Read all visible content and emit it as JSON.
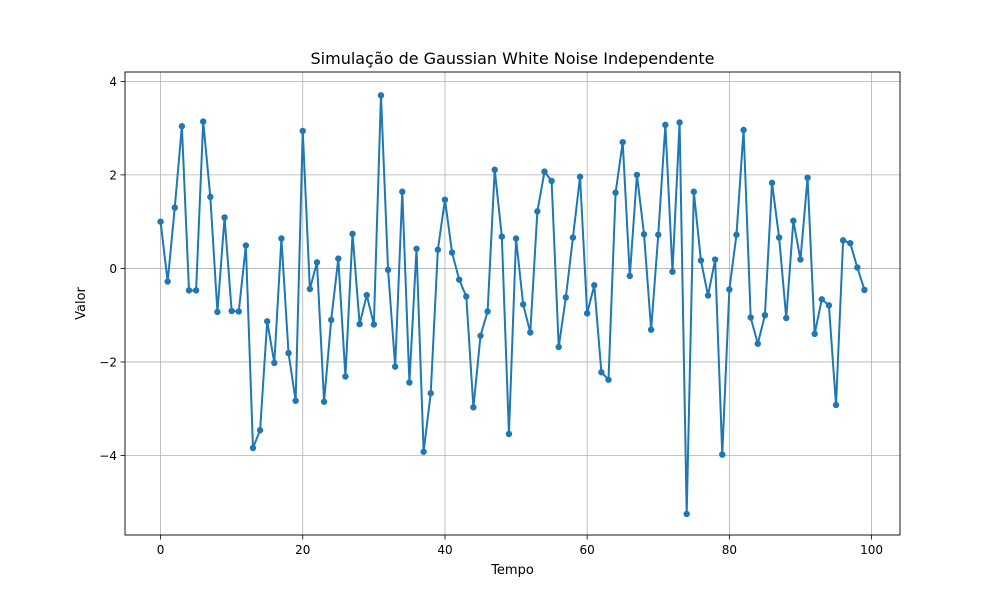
{
  "chart_data": {
    "type": "line",
    "title": "Simulação de Gaussian White Noise Independente",
    "xlabel": "Tempo",
    "ylabel": "Valor",
    "xlim": [
      -5,
      104
    ],
    "ylim": [
      -5.7,
      4.2
    ],
    "xticks": [
      0,
      20,
      40,
      60,
      80,
      100
    ],
    "yticks": [
      -4,
      -2,
      0,
      2,
      4
    ],
    "xtick_labels": [
      "0",
      "20",
      "40",
      "60",
      "80",
      "100"
    ],
    "ytick_labels": [
      "−4",
      "−2",
      "0",
      "2",
      "4"
    ],
    "grid": true,
    "series": [
      {
        "color": "#1f77b4",
        "marker": "circle",
        "x": [
          0,
          1,
          2,
          3,
          4,
          5,
          6,
          7,
          8,
          9,
          10,
          11,
          12,
          13,
          14,
          15,
          16,
          17,
          18,
          19,
          20,
          21,
          22,
          23,
          24,
          25,
          26,
          27,
          28,
          29,
          30,
          31,
          32,
          33,
          34,
          35,
          36,
          37,
          38,
          39,
          40,
          41,
          42,
          43,
          44,
          45,
          46,
          47,
          48,
          49,
          50,
          51,
          52,
          53,
          54,
          55,
          56,
          57,
          58,
          59,
          60,
          61,
          62,
          63,
          64,
          65,
          66,
          67,
          68,
          69,
          70,
          71,
          72,
          73,
          74,
          75,
          76,
          77,
          78,
          79,
          80,
          81,
          82,
          83,
          84,
          85,
          86,
          87,
          88,
          89,
          90,
          91,
          92,
          93,
          94,
          95,
          96,
          97,
          98,
          99
        ],
        "values": [
          1.0,
          -0.28,
          1.3,
          3.04,
          -0.47,
          -0.47,
          3.14,
          1.53,
          -0.93,
          1.09,
          -0.91,
          -0.92,
          0.49,
          -3.84,
          -3.46,
          -1.13,
          -2.02,
          0.64,
          -1.81,
          -2.83,
          2.94,
          -0.44,
          0.13,
          -2.85,
          -1.1,
          0.21,
          -2.31,
          0.74,
          -1.19,
          -0.57,
          -1.2,
          3.7,
          -0.03,
          -2.1,
          1.64,
          -2.44,
          0.42,
          -3.92,
          -2.67,
          0.4,
          1.47,
          0.34,
          -0.24,
          -0.6,
          -2.97,
          -1.44,
          -0.92,
          2.11,
          0.68,
          -3.54,
          0.64,
          -0.77,
          -1.37,
          1.22,
          2.07,
          1.87,
          -1.68,
          -0.62,
          0.66,
          1.96,
          -0.96,
          -0.36,
          -2.22,
          -2.38,
          1.62,
          2.7,
          -0.16,
          2.0,
          0.73,
          -1.31,
          0.72,
          3.07,
          -0.07,
          3.12,
          -5.25,
          1.64,
          0.17,
          -0.58,
          0.19,
          -3.98,
          -0.45,
          0.72,
          2.96,
          -1.05,
          -1.61,
          -1.0,
          1.83,
          0.66,
          -1.06,
          1.02,
          0.19,
          1.94,
          -1.4,
          -0.66,
          -0.79,
          -2.92,
          0.6,
          0.54,
          0.02,
          -0.46
        ]
      }
    ]
  }
}
